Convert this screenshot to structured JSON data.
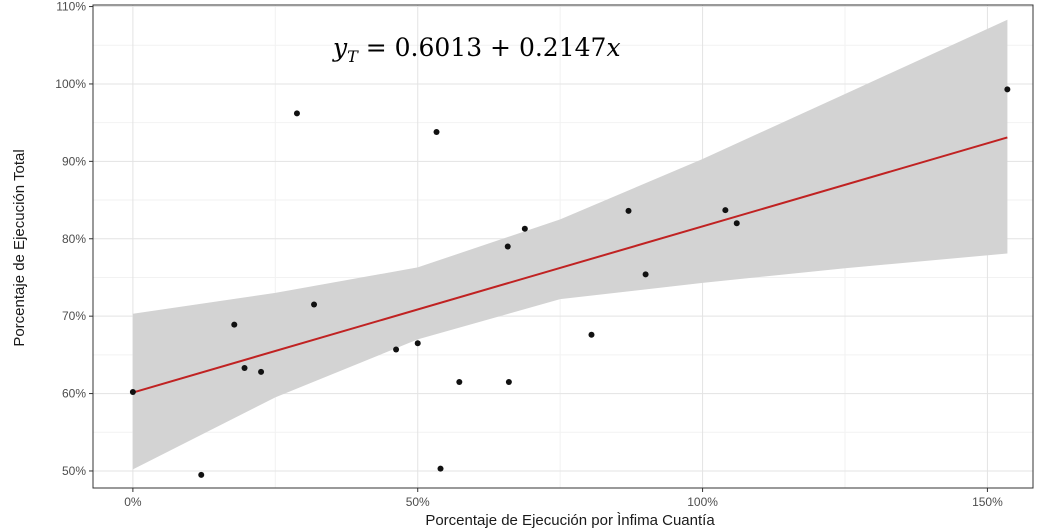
{
  "chart_data": {
    "type": "scatter",
    "xlabel": "Porcentaje de Ejecución por Ìnfima Cuantía",
    "ylabel": "Porcentaje de Ejecución Total",
    "xlim": [
      -0.07,
      1.58
    ],
    "ylim": [
      0.478,
      1.102
    ],
    "x_ticks": [
      0,
      0.5,
      1.0,
      1.5
    ],
    "x_tick_labels": [
      "0%",
      "50%",
      "100%",
      "150%"
    ],
    "y_ticks": [
      0.5,
      0.6,
      0.7,
      0.8,
      0.9,
      1.0,
      1.1
    ],
    "y_tick_labels": [
      "50%",
      "60%",
      "70%",
      "80%",
      "90%",
      "100%",
      "110%"
    ],
    "grid": true,
    "annotation": {
      "lhs_base": "y",
      "lhs_sub": "T",
      "rhs": " = 0.6013 + 0.2147",
      "var": "x"
    },
    "points": [
      {
        "x": 0.0,
        "y": 0.602
      },
      {
        "x": 0.12,
        "y": 0.495
      },
      {
        "x": 0.178,
        "y": 0.689
      },
      {
        "x": 0.196,
        "y": 0.633
      },
      {
        "x": 0.225,
        "y": 0.628
      },
      {
        "x": 0.288,
        "y": 0.962
      },
      {
        "x": 0.318,
        "y": 0.715
      },
      {
        "x": 0.462,
        "y": 0.657
      },
      {
        "x": 0.5,
        "y": 0.665
      },
      {
        "x": 0.533,
        "y": 0.938
      },
      {
        "x": 0.54,
        "y": 0.503
      },
      {
        "x": 0.573,
        "y": 0.615
      },
      {
        "x": 0.658,
        "y": 0.79
      },
      {
        "x": 0.66,
        "y": 0.615
      },
      {
        "x": 0.688,
        "y": 0.813
      },
      {
        "x": 0.805,
        "y": 0.676
      },
      {
        "x": 0.87,
        "y": 0.836
      },
      {
        "x": 0.9,
        "y": 0.754
      },
      {
        "x": 1.04,
        "y": 0.837
      },
      {
        "x": 1.06,
        "y": 0.82
      },
      {
        "x": 1.535,
        "y": 0.993
      }
    ],
    "regression": {
      "intercept": 0.6013,
      "slope": 0.2147,
      "x_range": [
        0.0,
        1.535
      ],
      "line_color": "#c02222"
    },
    "confidence_band": {
      "color": "#d3d3d3",
      "lower": [
        {
          "x": 0.0,
          "y": 0.502
        },
        {
          "x": 0.25,
          "y": 0.595
        },
        {
          "x": 0.5,
          "y": 0.67
        },
        {
          "x": 0.75,
          "y": 0.722
        },
        {
          "x": 1.0,
          "y": 0.743
        },
        {
          "x": 1.25,
          "y": 0.762
        },
        {
          "x": 1.535,
          "y": 0.781
        }
      ],
      "upper": [
        {
          "x": 0.0,
          "y": 0.703
        },
        {
          "x": 0.25,
          "y": 0.73
        },
        {
          "x": 0.5,
          "y": 0.763
        },
        {
          "x": 0.75,
          "y": 0.825
        },
        {
          "x": 1.0,
          "y": 0.903
        },
        {
          "x": 1.25,
          "y": 0.987
        },
        {
          "x": 1.535,
          "y": 1.083
        }
      ]
    },
    "point_color": "#111111",
    "grid_major_color": "#e3e3e3",
    "grid_minor_color": "#f2f2f2"
  }
}
